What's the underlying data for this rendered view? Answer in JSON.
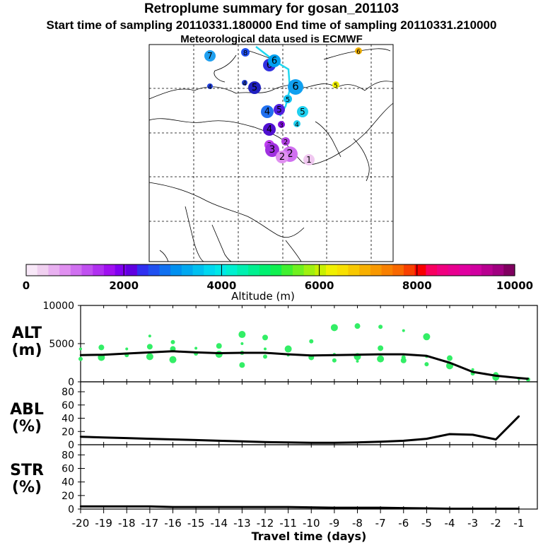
{
  "header": {
    "title": "Retroplume summary for gosan_201103",
    "times": "Start time of sampling 20110331.180000     End time of sampling 20110331.210000",
    "met": "Meteorological data used is ECMWF"
  },
  "colors": {
    "axis": "#000000",
    "cluster": "#33ee66",
    "line": "#000000",
    "coast": "#000000",
    "grid": "#000000"
  },
  "colorbar": {
    "label": "Altitude (m)",
    "ticks": [
      "0",
      "2000",
      "4000",
      "6000",
      "8000",
      "10000"
    ],
    "colors": [
      "#f8e8f8",
      "#f0d0f0",
      "#e8b0f0",
      "#e090f0",
      "#d070f0",
      "#c050f0",
      "#b030f0",
      "#a010f0",
      "#8000f0",
      "#6000e0",
      "#3030f0",
      "#2050f0",
      "#1070f0",
      "#0090f0",
      "#00a8f0",
      "#00c0f0",
      "#00d8f0",
      "#00e8e8",
      "#00f0d0",
      "#00f0b0",
      "#00f090",
      "#00f070",
      "#10f050",
      "#40f030",
      "#70f020",
      "#a0f010",
      "#c8f000",
      "#f0f000",
      "#f8e000",
      "#f8c800",
      "#f8b000",
      "#f89800",
      "#f88000",
      "#f86800",
      "#f84000",
      "#f80000",
      "#f80060",
      "#f00080",
      "#e80090",
      "#e000a0",
      "#d000a0",
      "#b80090",
      "#a00080",
      "#800060"
    ]
  },
  "map_markers": [
    {
      "label": "7",
      "color": "#20a0f0",
      "size": 8
    },
    {
      "label": "8",
      "color": "#2050f0",
      "size": 6
    },
    {
      "label": "6",
      "color": "#3030e0",
      "size": 9
    },
    {
      "label": "6",
      "color": "#00a0f0",
      "size": 9
    },
    {
      "label": "6",
      "color": "#f0b000",
      "size": 5
    },
    {
      "label": "4",
      "color": "#2040e0",
      "size": 4
    },
    {
      "label": "4",
      "color": "#2040d0",
      "size": 4
    },
    {
      "label": "5",
      "color": "#2020c0",
      "size": 9
    },
    {
      "label": "6",
      "color": "#10a0f0",
      "size": 11
    },
    {
      "label": "5",
      "color": "#f0f000",
      "size": 5
    },
    {
      "label": "5",
      "color": "#10c0f0",
      "size": 6
    },
    {
      "label": "5",
      "color": "#20b0f0",
      "size": 6
    },
    {
      "label": "4",
      "color": "#2070f0",
      "size": 9
    },
    {
      "label": "5",
      "color": "#5020e0",
      "size": 8
    },
    {
      "label": "5",
      "color": "#20d0f0",
      "size": 8
    },
    {
      "label": "4",
      "color": "#20d0f0",
      "size": 5
    },
    {
      "label": "4",
      "color": "#5010d0",
      "size": 9
    },
    {
      "label": "3",
      "color": "#8010e0",
      "size": 5
    },
    {
      "label": "3",
      "color": "#c040f0",
      "size": 7
    },
    {
      "label": "3",
      "color": "#a030e0",
      "size": 10
    },
    {
      "label": "2",
      "color": "#d070f0",
      "size": 11
    },
    {
      "label": "2",
      "color": "#e090f0",
      "size": 9
    },
    {
      "label": "2",
      "color": "#b040e0",
      "size": 6
    },
    {
      "label": "1",
      "color": "#f0c8f0",
      "size": 8
    }
  ],
  "chart_data": [
    {
      "type": "line",
      "panel": "ALT",
      "ylabel": "ALT\n(m)",
      "ylabel_line1": "ALT",
      "ylabel_line2": "(m)",
      "ylim": [
        0,
        10000
      ],
      "yticks": [
        "0",
        "5000",
        "10000"
      ],
      "x": [
        -20.0,
        -19.0,
        -18.0,
        -17.0,
        -16.0,
        -15.0,
        -14.0,
        -13.0,
        -12.0,
        -11.0,
        -10.0,
        -9.0,
        -8.0,
        -7.0,
        -6.0,
        -5.0,
        -4.0,
        -3.0,
        -2.0,
        -1.0,
        -0.6
      ],
      "values": [
        3500,
        3550,
        3700,
        3850,
        4000,
        3850,
        3750,
        3800,
        3800,
        3600,
        3450,
        3500,
        3550,
        3600,
        3600,
        3400,
        2500,
        1300,
        800,
        500,
        400
      ],
      "clusters": [
        {
          "x": -20.0,
          "y": 4300
        },
        {
          "x": -20.0,
          "y": 3000
        },
        {
          "x": -19.1,
          "y": 4500
        },
        {
          "x": -19.1,
          "y": 3200
        },
        {
          "x": -18.0,
          "y": 4300
        },
        {
          "x": -18.0,
          "y": 3500
        },
        {
          "x": -17.0,
          "y": 4600
        },
        {
          "x": -17.0,
          "y": 3300
        },
        {
          "x": -17.0,
          "y": 6000
        },
        {
          "x": -16.0,
          "y": 5200
        },
        {
          "x": -16.0,
          "y": 4300
        },
        {
          "x": -16.0,
          "y": 2900
        },
        {
          "x": -15.0,
          "y": 4400
        },
        {
          "x": -15.0,
          "y": 3700
        },
        {
          "x": -14.0,
          "y": 4700
        },
        {
          "x": -14.0,
          "y": 3600
        },
        {
          "x": -13.0,
          "y": 5000
        },
        {
          "x": -13.0,
          "y": 3800
        },
        {
          "x": -13.0,
          "y": 2200
        },
        {
          "x": -13.0,
          "y": 6200
        },
        {
          "x": -12.0,
          "y": 4300
        },
        {
          "x": -12.0,
          "y": 3300
        },
        {
          "x": -12.0,
          "y": 5800
        },
        {
          "x": -11.0,
          "y": 4300
        },
        {
          "x": -11.0,
          "y": 3500
        },
        {
          "x": -10.0,
          "y": 5300
        },
        {
          "x": -10.0,
          "y": 3200
        },
        {
          "x": -9.0,
          "y": 7100
        },
        {
          "x": -9.0,
          "y": 3600
        },
        {
          "x": -9.0,
          "y": 2800
        },
        {
          "x": -8.0,
          "y": 7300
        },
        {
          "x": -8.0,
          "y": 3300
        },
        {
          "x": -8.0,
          "y": 2700
        },
        {
          "x": -7.0,
          "y": 7200
        },
        {
          "x": -7.0,
          "y": 4400
        },
        {
          "x": -7.0,
          "y": 3000
        },
        {
          "x": -6.0,
          "y": 6700
        },
        {
          "x": -6.0,
          "y": 3200
        },
        {
          "x": -6.0,
          "y": 2800
        },
        {
          "x": -5.0,
          "y": 5900
        },
        {
          "x": -5.0,
          "y": 3300
        },
        {
          "x": -5.0,
          "y": 2300
        },
        {
          "x": -4.0,
          "y": 3100
        },
        {
          "x": -4.0,
          "y": 2100
        },
        {
          "x": -3.0,
          "y": 1600
        },
        {
          "x": -3.0,
          "y": 1100
        },
        {
          "x": -2.0,
          "y": 900
        },
        {
          "x": -2.0,
          "y": 600
        },
        {
          "x": -1.0,
          "y": 400
        },
        {
          "x": -0.6,
          "y": 300
        }
      ]
    },
    {
      "type": "line",
      "panel": "ABL",
      "ylabel_line1": "ABL",
      "ylabel_line2": "(%)",
      "ylim": [
        0,
        95
      ],
      "yticks": [
        "0",
        "20",
        "40",
        "60",
        "80"
      ],
      "x": [
        -20.0,
        -19.0,
        -18.0,
        -17.0,
        -16.0,
        -15.0,
        -14.0,
        -13.0,
        -12.0,
        -11.0,
        -10.0,
        -9.0,
        -8.0,
        -7.0,
        -6.0,
        -5.0,
        -4.0,
        -3.0,
        -2.0,
        -1.0
      ],
      "values": [
        12,
        11,
        10,
        9,
        8,
        7,
        6,
        5,
        4,
        3.5,
        3,
        3,
        3.5,
        4.5,
        6,
        9,
        16,
        15,
        8,
        43
      ]
    },
    {
      "type": "line",
      "panel": "STR",
      "ylabel_line1": "STR",
      "ylabel_line2": "(%)",
      "ylim": [
        0,
        95
      ],
      "yticks": [
        "0",
        "20",
        "40",
        "60",
        "80"
      ],
      "x": [
        -20.0,
        -19.0,
        -18.0,
        -17.0,
        -16.0,
        -15.0,
        -14.0,
        -13.0,
        -12.0,
        -11.0,
        -10.0,
        -9.0,
        -8.0,
        -7.0,
        -6.0,
        -5.0,
        -4.0,
        -3.0,
        -2.0,
        -1.0
      ],
      "values": [
        4,
        4,
        4,
        4,
        3,
        3,
        3,
        3,
        3,
        3,
        2.5,
        2,
        2,
        2,
        1.5,
        1,
        0.5,
        0.5,
        0.5,
        0.5
      ]
    }
  ],
  "xaxis": {
    "label": "Travel time (days)",
    "xlim": [
      -20.0,
      -0.2
    ],
    "ticks": [
      "-20",
      "-19",
      "-18",
      "-17",
      "-16",
      "-15",
      "-14",
      "-13",
      "-12",
      "-11",
      "-10",
      "-9",
      "-8",
      "-7",
      "-6",
      "-5",
      "-4",
      "-3",
      "-2",
      "-1"
    ]
  }
}
